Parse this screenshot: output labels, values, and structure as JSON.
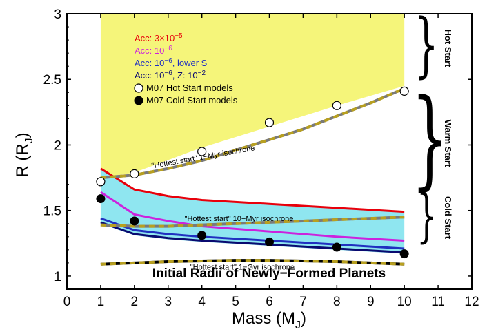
{
  "chart_data": {
    "type": "line",
    "title": "Initial Radii of Newly−Formed Planets",
    "xlabel": "Mass (M",
    "xlabel_sub": "J",
    "xlabel_close": ")",
    "ylabel": "R (R",
    "ylabel_sub": "J",
    "ylabel_close": ")",
    "xlim": [
      0,
      12
    ],
    "ylim": [
      0.9,
      3.0
    ],
    "x_ticks": [
      "0",
      "1",
      "2",
      "3",
      "4",
      "5",
      "6",
      "7",
      "8",
      "9",
      "10",
      "11",
      "12"
    ],
    "y_ticks": [
      "1",
      "1.5",
      "2",
      "2.5",
      "3"
    ],
    "y_tick_values": [
      1,
      1.5,
      2,
      2.5,
      3
    ],
    "colors": {
      "hot_region": "#f5f57a",
      "cold_region": "#8fe6f0",
      "acc_3e5": "#e8000b",
      "acc_1e6": "#cc22dd",
      "acc_lowS": "#2030c0",
      "acc_Z": "#0a0a70",
      "iso_dash_a": "#b8a020",
      "iso_dash_b": "#7a7a7a"
    },
    "regions": {
      "hot_top": 3.0,
      "hot_lower": {
        "x": [
          1,
          2,
          4,
          6,
          8,
          10
        ],
        "y": [
          1.75,
          1.79,
          1.98,
          2.14,
          2.3,
          2.45
        ]
      },
      "cold_upper": {
        "x": [
          1,
          2,
          3,
          4,
          6,
          8,
          10
        ],
        "y": [
          1.82,
          1.66,
          1.61,
          1.58,
          1.55,
          1.52,
          1.49
        ]
      },
      "cold_lower": {
        "x": [
          1,
          2,
          3,
          4,
          6,
          8,
          10
        ],
        "y": [
          1.4,
          1.31,
          1.28,
          1.26,
          1.23,
          1.2,
          1.17
        ]
      }
    },
    "series": [
      {
        "name": "Acc: 3×10",
        "sup": "−5",
        "suffix": "",
        "color_key": "acc_3e5",
        "x": [
          1,
          2,
          3,
          4,
          6,
          8,
          10
        ],
        "y": [
          1.82,
          1.66,
          1.61,
          1.58,
          1.55,
          1.52,
          1.49
        ]
      },
      {
        "name": "Acc: 10",
        "sup": "−6",
        "suffix": "",
        "color_key": "acc_1e6",
        "x": [
          1,
          2,
          3,
          4,
          6,
          8,
          10
        ],
        "y": [
          1.64,
          1.47,
          1.42,
          1.38,
          1.34,
          1.3,
          1.27
        ]
      },
      {
        "name": "Acc: 10",
        "sup": "−6",
        "suffix": ", lower S",
        "color_key": "acc_lowS",
        "x": [
          1,
          2,
          3,
          4,
          6,
          8,
          10
        ],
        "y": [
          1.44,
          1.35,
          1.32,
          1.3,
          1.27,
          1.24,
          1.21
        ]
      },
      {
        "name": "Acc: 10",
        "sup": "−6",
        "suffix": ", Z: 10",
        "suffix_sup": "−2",
        "color_key": "acc_Z",
        "x": [
          1,
          2,
          3,
          4,
          6,
          8,
          10
        ],
        "y": [
          1.41,
          1.32,
          1.29,
          1.27,
          1.24,
          1.21,
          1.18
        ]
      }
    ],
    "isochrones": [
      {
        "label": "\"Hottest start\" 1−Myr isochrone",
        "x": [
          1,
          2,
          3,
          4,
          5,
          6,
          7,
          8,
          9,
          10
        ],
        "y": [
          1.75,
          1.77,
          1.82,
          1.88,
          1.96,
          2.04,
          2.12,
          2.22,
          2.32,
          2.43
        ],
        "label_x": 4.05,
        "label_y": 1.89,
        "rotate": -10
      },
      {
        "label": "\"Hottest start\" 10−Myr isochrone",
        "x": [
          1,
          2,
          3,
          4,
          5,
          6,
          7,
          8,
          9,
          10
        ],
        "y": [
          1.39,
          1.38,
          1.38,
          1.39,
          1.4,
          1.41,
          1.42,
          1.43,
          1.44,
          1.45
        ],
        "label_x": 5.1,
        "label_y": 1.42,
        "rotate": 0
      },
      {
        "label": "\"Hottest start\" 1−Gyr isochrone",
        "x": [
          1,
          2,
          3,
          4,
          5,
          6,
          7,
          8,
          9,
          10
        ],
        "y": [
          1.09,
          1.1,
          1.11,
          1.115,
          1.12,
          1.12,
          1.115,
          1.11,
          1.1,
          1.09
        ],
        "label_x": 5.2,
        "label_y": 1.05,
        "rotate": 0
      }
    ],
    "hot_start_models": {
      "name": "M07 Hot Start models",
      "x": [
        1,
        2,
        4,
        6,
        8,
        10
      ],
      "y": [
        1.72,
        1.78,
        1.95,
        2.17,
        2.3,
        2.41
      ]
    },
    "cold_start_models": {
      "name": "M07 Cold Start models",
      "x": [
        1,
        2,
        4,
        6,
        8,
        10
      ],
      "y": [
        1.59,
        1.42,
        1.31,
        1.26,
        1.22,
        1.17
      ]
    },
    "annotations": {
      "hot_start": "Hot Start",
      "warm_start": "Warm Start",
      "cold_start": "Cold Start"
    }
  }
}
